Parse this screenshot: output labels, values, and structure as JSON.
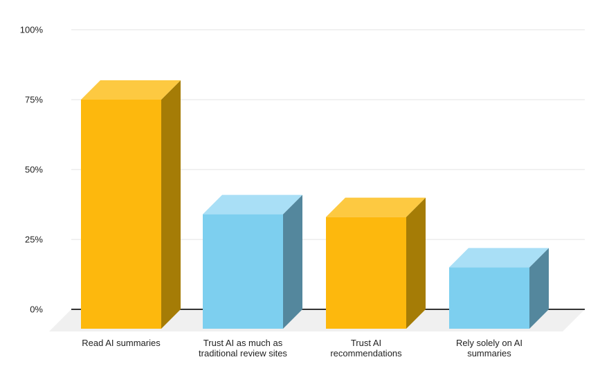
{
  "chart_data": {
    "type": "bar",
    "style": "3d-column",
    "title": "",
    "legend": "none",
    "grid": true,
    "unit": "%",
    "ylim": [
      0,
      100
    ],
    "categories": [
      "Read AI summaries",
      "Trust AI as much as traditional review sites",
      "Trust AI recommendations",
      "Rely solely on AI summaries"
    ],
    "values": [
      75,
      34,
      33,
      15
    ],
    "y_ticks": [
      {
        "label": "0%",
        "value": 0
      },
      {
        "label": "25%",
        "value": 25
      },
      {
        "label": "50%",
        "value": 50
      },
      {
        "label": "75%",
        "value": 75
      },
      {
        "label": "100%",
        "value": 100
      }
    ],
    "bars": [
      {
        "label_lines": [
          "Read AI summaries"
        ],
        "value": 75,
        "color": "yellow"
      },
      {
        "label_lines": [
          "Trust AI as much as",
          "traditional review sites"
        ],
        "value": 34,
        "color": "blue"
      },
      {
        "label_lines": [
          "Trust AI",
          "recommendations"
        ],
        "value": 33,
        "color": "yellow"
      },
      {
        "label_lines": [
          "Rely solely on AI",
          "summaries"
        ],
        "value": 15,
        "color": "blue"
      }
    ],
    "colors": {
      "yellow": {
        "front": "#FDB80D",
        "top": "#FDC941",
        "side": "#A57C06"
      },
      "blue": {
        "front": "#7DCFEF",
        "top": "#A9DFF6",
        "side": "#54879D"
      },
      "grid_line": "#E3E3E3",
      "zero_line": "#333333",
      "floor": "#F0F0F0",
      "label": "#212121",
      "background": "#FFFFFF"
    }
  }
}
